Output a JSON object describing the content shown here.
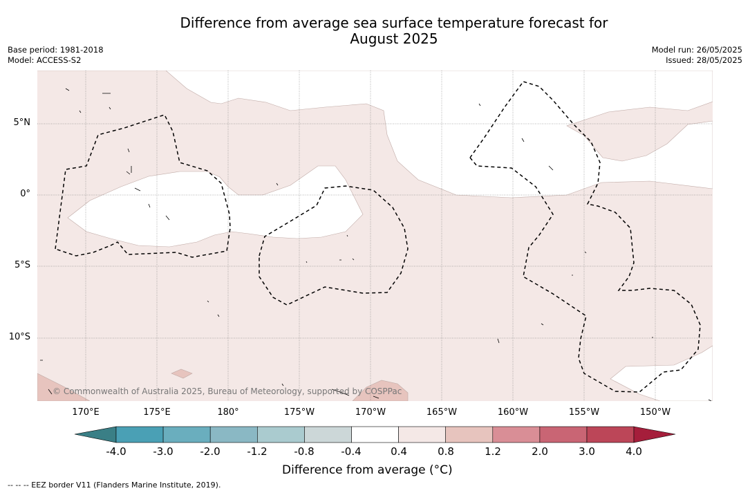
{
  "title": {
    "line1": "Difference from average sea surface temperature forecast for",
    "line2": "August 2025"
  },
  "meta": {
    "base_period": "Base period: 1981-2018",
    "model": "Model: ACCESS-S2",
    "model_run": "Model run: 26/05/2025",
    "issued": "Issued: 28/05/2025"
  },
  "map": {
    "lat_labels": [
      "5°N",
      "0°",
      "5°S",
      "10°S"
    ],
    "lon_labels": [
      "170°E",
      "175°E",
      "180°",
      "175°W",
      "170°W",
      "165°W",
      "160°W",
      "155°W",
      "150°W"
    ],
    "copyright": "© Commonwealth of Australia 2025, Bureau of Meteorology, supported by COSPPac",
    "colors": {
      "near_average": "#ffffff",
      "band_0_4_to_0_8": "#f4e8e6",
      "band_0_8_to_1_2": "#e7c4be",
      "gridline": "#555555",
      "eez_border": "#000000"
    }
  },
  "colorbar": {
    "ticks": [
      "-4.0",
      "-3.0",
      "-2.0",
      "-1.2",
      "-0.8",
      "-0.4",
      "0.4",
      "0.8",
      "1.2",
      "2.0",
      "3.0",
      "4.0"
    ],
    "colors": [
      "#4aa0b5",
      "#6aaebe",
      "#8ab8c4",
      "#aacbcf",
      "#ccd7d8",
      "#ffffff",
      "#f4e8e6",
      "#e7c4be",
      "#d98e96",
      "#c96574",
      "#bc4658"
    ],
    "under_color": "#3a7f86",
    "over_color": "#a51e3b",
    "label": "Difference from average (°C)"
  },
  "footnote": "--  --  -- EEZ border V11 (Flanders Marine Institute, 2019)."
}
